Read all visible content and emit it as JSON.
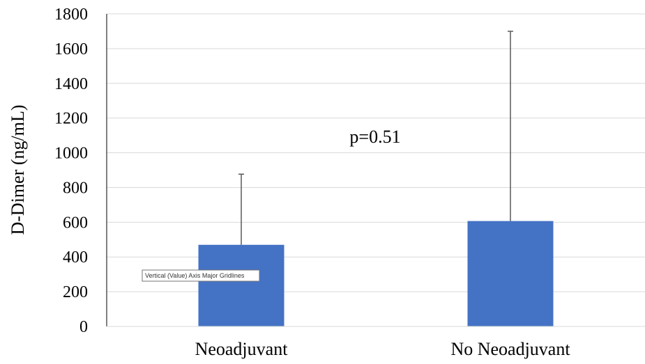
{
  "chart_data": {
    "type": "bar",
    "categories": [
      "Neoadjuvant",
      "No Neoadjuvant"
    ],
    "values": [
      470,
      607
    ],
    "error_upper": [
      877,
      1700
    ],
    "xlabel": "",
    "ylabel": "D-Dimer (ng/mL)",
    "ylim": [
      0,
      1800
    ],
    "yticks": [
      0,
      200,
      400,
      600,
      800,
      1000,
      1200,
      1400,
      1600,
      1800
    ],
    "grid": true,
    "legend": "none",
    "annotations": [
      "p=0.51"
    ],
    "bar_color": "#4472C4",
    "gridline_color": "#D9D9D9",
    "errorbar_color": "#595959"
  },
  "tooltip": {
    "text": "Vertical (Value) Axis Major Gridlines"
  }
}
